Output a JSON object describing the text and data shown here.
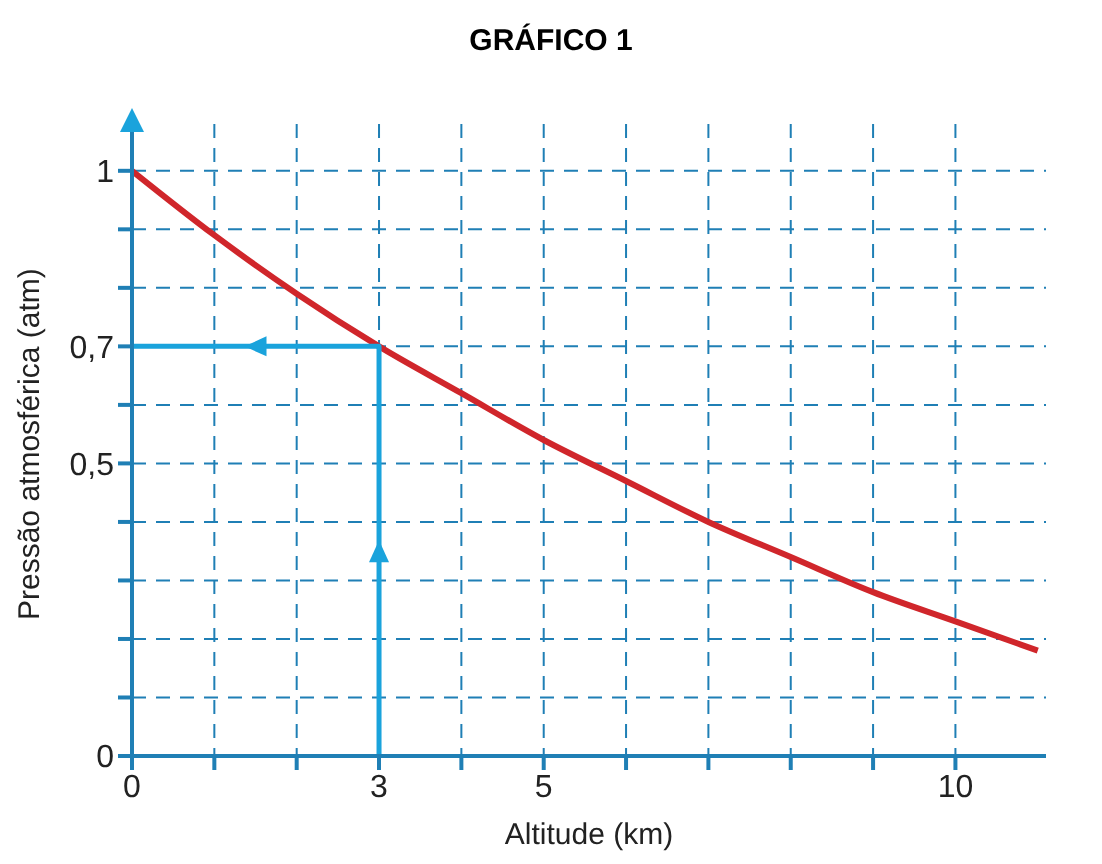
{
  "chart_data": {
    "type": "line",
    "title": "GRÁFICO 1",
    "xlabel": "Altitude (km)",
    "ylabel": "Pressão atmosférica (atm)",
    "xlim": [
      0,
      11.1
    ],
    "ylim": [
      0,
      1.08
    ],
    "xticks": [
      0,
      {
        "value": 1,
        "label": null
      },
      {
        "value": 2,
        "label": null
      },
      3,
      {
        "value": 4,
        "label": null
      },
      5,
      {
        "value": 6,
        "label": null
      },
      {
        "value": 7,
        "label": null
      },
      {
        "value": 8,
        "label": null
      },
      {
        "value": 9,
        "label": null
      },
      10
    ],
    "yticks": [
      0,
      {
        "value": 0.1,
        "label": null
      },
      {
        "value": 0.2,
        "label": null
      },
      {
        "value": 0.3,
        "label": null
      },
      {
        "value": 0.4,
        "label": null
      },
      {
        "value": 0.5,
        "label": "0,5"
      },
      {
        "value": 0.6,
        "label": null
      },
      {
        "value": 0.7,
        "label": "0,7"
      },
      {
        "value": 0.8,
        "label": null
      },
      {
        "value": 0.9,
        "label": null
      },
      1
    ],
    "grid": true,
    "series": [
      {
        "color": "#d0262b",
        "x": [
          0,
          1,
          2,
          3,
          4,
          5,
          6,
          7,
          8,
          9,
          10,
          11
        ],
        "values": [
          1,
          0.89,
          0.79,
          0.7,
          0.62,
          0.54,
          0.47,
          0.4,
          0.34,
          0.28,
          0.23,
          0.18
        ]
      },
      {
        "color": "#1aa3dc",
        "x": [
          3,
          3,
          0
        ],
        "values": [
          0,
          0.7,
          0.7
        ]
      }
    ]
  }
}
